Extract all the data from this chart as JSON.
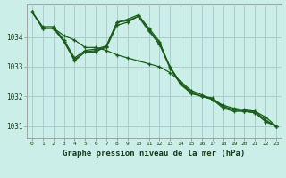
{
  "title": "Graphe pression niveau de la mer (hPa)",
  "bg_color": "#cceee8",
  "grid_color": "#aacccc",
  "line_color": "#1a5c1a",
  "x_ticks": [
    0,
    1,
    2,
    3,
    4,
    5,
    6,
    7,
    8,
    9,
    10,
    11,
    12,
    13,
    14,
    15,
    16,
    17,
    18,
    19,
    20,
    21,
    22,
    23
  ],
  "ylim": [
    1030.6,
    1035.1
  ],
  "yticks": [
    1031,
    1032,
    1033,
    1034
  ],
  "series": [
    [
      1034.85,
      1034.3,
      1034.3,
      1033.85,
      1033.2,
      1033.5,
      1033.5,
      1033.7,
      1034.5,
      1034.6,
      1034.75,
      1034.3,
      1033.85,
      1032.95,
      1032.45,
      1032.1,
      1032.0,
      1031.9,
      1031.6,
      1031.5,
      1031.5,
      1031.45,
      1031.15,
      1031.0
    ],
    [
      1034.85,
      1034.3,
      1034.3,
      1034.05,
      1033.9,
      1033.65,
      1033.65,
      1033.55,
      1033.4,
      1033.3,
      1033.2,
      1033.1,
      1033.0,
      1032.8,
      1032.5,
      1032.2,
      1032.05,
      1031.9,
      1031.7,
      1031.6,
      1031.55,
      1031.5,
      1031.3,
      1031.0
    ],
    [
      1034.85,
      1034.3,
      1034.3,
      1033.85,
      1033.25,
      1033.5,
      1033.55,
      1033.65,
      1034.4,
      1034.5,
      1034.7,
      1034.2,
      1033.75,
      1032.95,
      1032.4,
      1032.1,
      1032.0,
      1031.9,
      1031.65,
      1031.55,
      1031.5,
      1031.45,
      1031.15,
      1031.0
    ],
    [
      1034.85,
      1034.35,
      1034.35,
      1033.9,
      1033.3,
      1033.55,
      1033.6,
      1033.7,
      1034.5,
      1034.55,
      1034.7,
      1034.25,
      1033.8,
      1033.0,
      1032.45,
      1032.15,
      1032.0,
      1031.95,
      1031.65,
      1031.55,
      1031.5,
      1031.5,
      1031.2,
      1031.0
    ]
  ]
}
